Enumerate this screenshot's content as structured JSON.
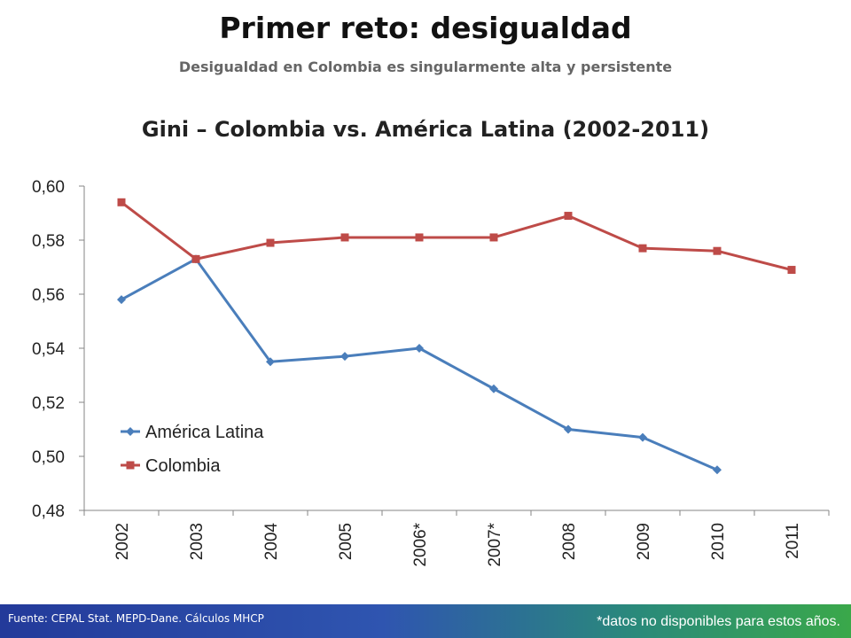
{
  "header": {
    "title": "Primer reto: desigualdad",
    "subtitle": "Desigualdad en Colombia es singularmente alta y persistente"
  },
  "chart_data": {
    "type": "line",
    "title": "Gini – Colombia vs. América Latina (2002-2011)",
    "categories": [
      "2002",
      "2003",
      "2004",
      "2005",
      "2006*",
      "2007*",
      "2008",
      "2009",
      "2010",
      "2011"
    ],
    "ylim": [
      0.48,
      0.6
    ],
    "yticks": [
      "0,60",
      "0,58",
      "0,56",
      "0,54",
      "0,52",
      "0,50",
      "0,48"
    ],
    "ytick_values": [
      0.6,
      0.58,
      0.56,
      0.54,
      0.52,
      0.5,
      0.48
    ],
    "grid": false,
    "legend_position": "bottom-left inside",
    "series": [
      {
        "name": "América Latina",
        "color": "#4a7ebb",
        "marker": "diamond",
        "values": [
          0.558,
          0.573,
          0.535,
          0.537,
          0.54,
          0.525,
          0.51,
          0.507,
          0.495,
          null
        ]
      },
      {
        "name": "Colombia",
        "color": "#be4b48",
        "marker": "square",
        "values": [
          0.594,
          0.573,
          0.579,
          0.581,
          0.581,
          0.581,
          0.589,
          0.577,
          0.576,
          0.569
        ]
      }
    ]
  },
  "footer": {
    "source": "Fuente: CEPAL Stat. MEPD-Dane. Cálculos MHCP",
    "note": "*datos no disponibles para estos años."
  }
}
